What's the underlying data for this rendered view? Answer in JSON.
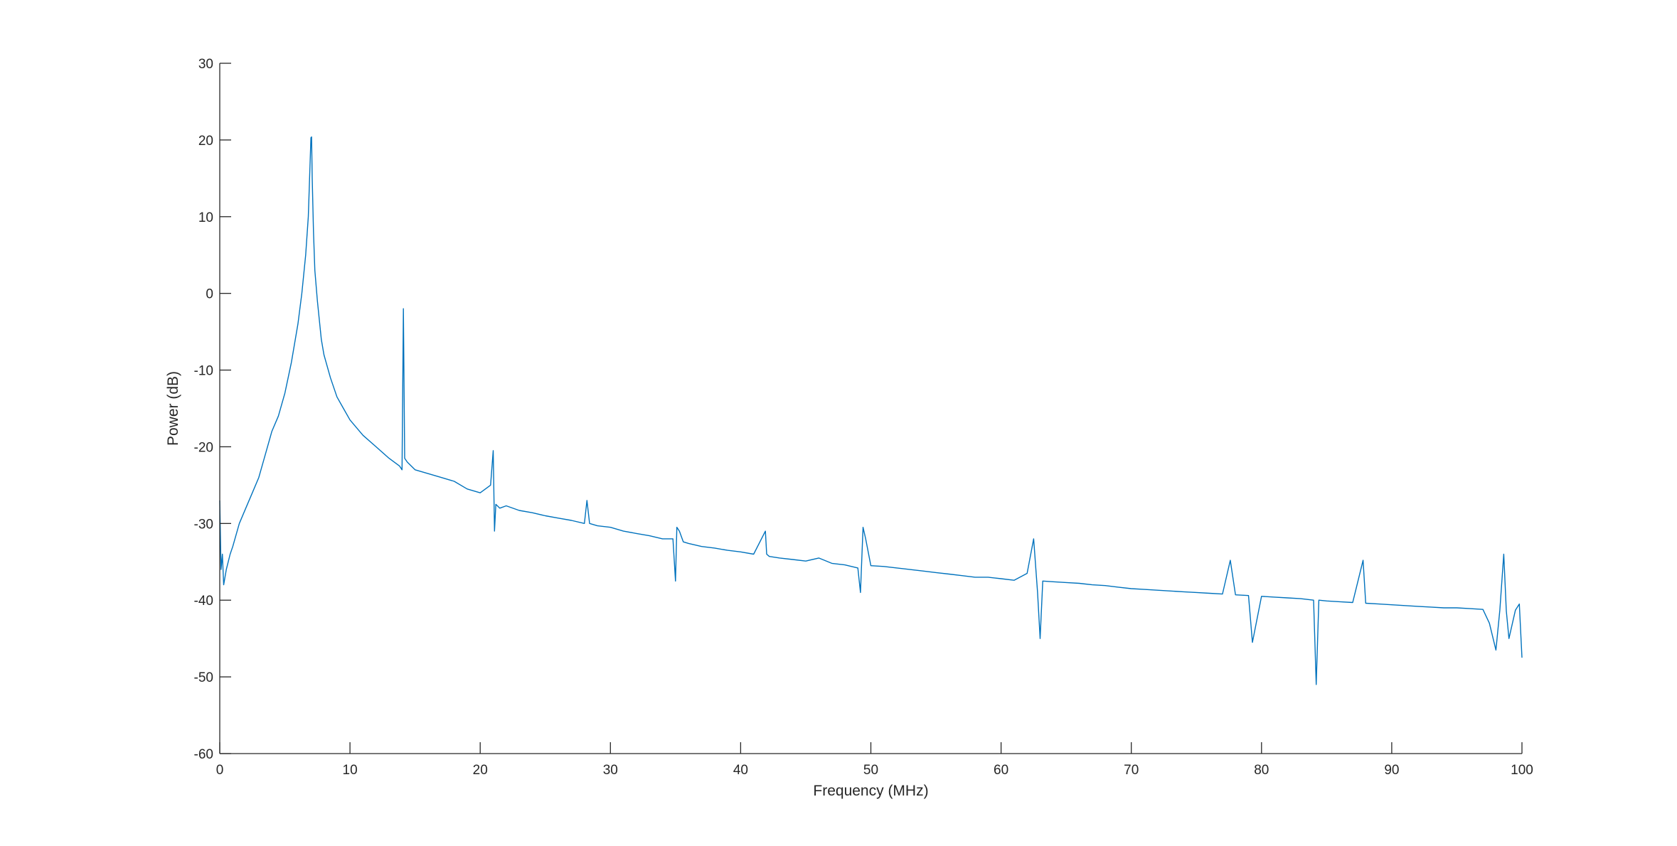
{
  "chart_data": {
    "type": "line",
    "title": "",
    "xlabel": "Frequency (MHz)",
    "ylabel": "Power (dB)",
    "xlim": [
      0,
      100
    ],
    "ylim": [
      -60,
      30
    ],
    "xticks": [
      0,
      10,
      20,
      30,
      40,
      50,
      60,
      70,
      80,
      90,
      100
    ],
    "yticks": [
      -60,
      -50,
      -40,
      -30,
      -20,
      -10,
      0,
      10,
      20,
      30
    ],
    "grid": false,
    "legend": "none",
    "line_color": "#0072bd",
    "axis_color": "#262626",
    "series": [
      {
        "x": [
          0,
          0.1,
          0.2,
          0.3,
          0.5,
          0.8,
          1,
          1.5,
          2,
          2.5,
          3,
          3.5,
          4,
          4.5,
          5,
          5.5,
          6,
          6.3,
          6.6,
          6.8,
          6.9,
          7.0,
          7.05,
          7.1,
          7.2,
          7.3,
          7.5,
          7.8,
          8,
          8.5,
          9,
          9.5,
          10,
          11,
          12,
          13,
          13.8,
          14.0,
          14.1,
          14.2,
          14.4,
          15,
          16,
          17,
          18,
          19,
          20,
          20.8,
          21.0,
          21.1,
          21.2,
          21.5,
          22,
          23,
          24,
          25,
          26,
          27,
          28,
          28.2,
          28.4,
          29,
          30,
          31,
          32,
          33,
          34,
          34.8,
          35.0,
          35.1,
          35.3,
          35.6,
          36,
          37,
          38,
          39,
          40,
          41,
          41.9,
          42.0,
          42.2,
          43,
          44,
          45,
          46,
          47,
          48,
          49,
          49.2,
          49.4,
          49.6,
          50,
          51,
          52,
          53,
          54,
          55,
          56,
          57,
          58,
          59,
          60,
          61,
          62,
          62.5,
          62.8,
          63.0,
          63.2,
          64,
          65,
          66,
          67,
          68,
          69,
          70,
          71,
          72,
          73,
          74,
          75,
          76,
          77,
          77.6,
          78,
          79,
          79.3,
          80,
          81,
          82,
          83,
          84,
          84.2,
          84.4,
          85,
          86,
          87,
          87.8,
          88,
          89,
          90,
          91,
          92,
          93,
          94,
          95,
          96,
          97,
          97.5,
          98,
          98.3,
          98.6,
          98.8,
          99,
          99.5,
          99.8,
          100
        ],
        "y": [
          -27,
          -36,
          -34,
          -38,
          -36,
          -34,
          -33,
          -30,
          -28,
          -26,
          -24,
          -21,
          -18,
          -16,
          -13,
          -9,
          -4,
          0,
          5,
          10,
          15,
          20.3,
          20.4,
          15,
          8,
          3,
          -1,
          -6,
          -8,
          -11,
          -13.5,
          -15,
          -16.5,
          -18.5,
          -20,
          -21.5,
          -22.5,
          -23,
          -2,
          -21.5,
          -22,
          -23,
          -23.5,
          -24,
          -24.5,
          -25.5,
          -26,
          -25,
          -20.5,
          -31,
          -27.5,
          -28,
          -27.7,
          -28.3,
          -28.6,
          -29,
          -29.3,
          -29.6,
          -30,
          -27,
          -30,
          -30.3,
          -30.5,
          -31,
          -31.3,
          -31.6,
          -32,
          -32,
          -37.5,
          -30.5,
          -31,
          -32.4,
          -32.6,
          -33,
          -33.2,
          -33.5,
          -33.7,
          -34,
          -31,
          -34,
          -34.3,
          -34.5,
          -34.7,
          -34.9,
          -34.5,
          -35.2,
          -35.4,
          -35.8,
          -39,
          -30.5,
          -32,
          -35.5,
          -35.6,
          -35.8,
          -36,
          -36.2,
          -36.4,
          -36.6,
          -36.8,
          -37,
          -37,
          -37.2,
          -37.4,
          -36.5,
          -32,
          -39,
          -45,
          -37.5,
          -37.6,
          -37.7,
          -37.8,
          -38,
          -38.1,
          -38.3,
          -38.5,
          -38.6,
          -38.7,
          -38.8,
          -38.9,
          -39,
          -39.1,
          -39.2,
          -34.8,
          -39.3,
          -39.4,
          -45.5,
          -39.5,
          -39.6,
          -39.7,
          -39.8,
          -40,
          -51,
          -40,
          -40.1,
          -40.2,
          -40.3,
          -34.8,
          -40.4,
          -40.5,
          -40.6,
          -40.7,
          -40.8,
          -40.9,
          -41,
          -41,
          -41.1,
          -41.2,
          -43,
          -46.5,
          -41.3,
          -34,
          -41.4,
          -45,
          -41.3,
          -40.5,
          -47.5
        ]
      }
    ]
  }
}
